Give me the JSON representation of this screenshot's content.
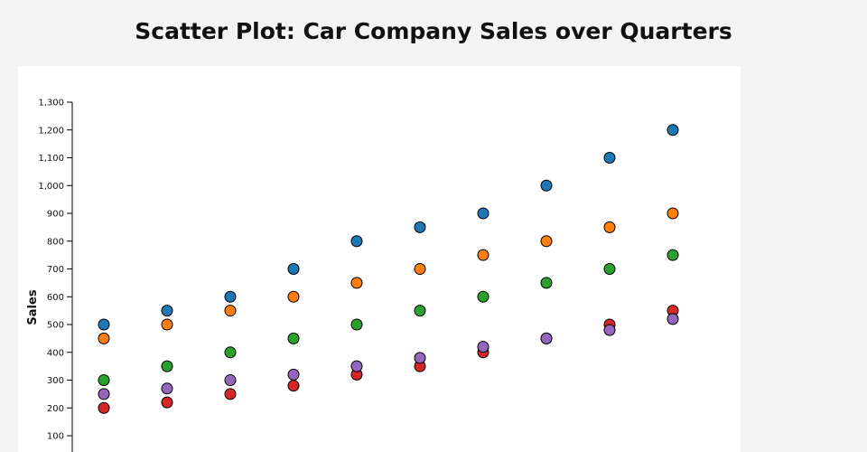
{
  "chart_data": {
    "type": "scatter",
    "title": "Scatter Plot: Car Company Sales over Quarters",
    "xlabel": "",
    "ylabel": "Sales",
    "ylim": [
      0,
      1300
    ],
    "yticks": [
      100,
      200,
      300,
      400,
      500,
      600,
      700,
      800,
      900,
      1000,
      1100,
      1200,
      1300
    ],
    "ytick_labels": [
      "100",
      "200",
      "300",
      "400",
      "500",
      "600",
      "700",
      "800",
      "900",
      "1,000",
      "1,100",
      "1,200",
      "1,300"
    ],
    "x": [
      1,
      2,
      3,
      4,
      5,
      6,
      7,
      8,
      9,
      10
    ],
    "grid": false,
    "series": [
      {
        "color": "#1f77b4",
        "values": [
          500,
          550,
          600,
          700,
          800,
          850,
          900,
          1000,
          1100,
          1200
        ]
      },
      {
        "color": "#ff7f0e",
        "values": [
          450,
          500,
          550,
          600,
          650,
          700,
          750,
          800,
          850,
          900
        ]
      },
      {
        "color": "#2ca02c",
        "values": [
          300,
          350,
          400,
          450,
          500,
          550,
          600,
          650,
          700,
          750
        ]
      },
      {
        "color": "#d62728",
        "values": [
          200,
          220,
          250,
          280,
          320,
          350,
          400,
          450,
          500,
          550
        ]
      },
      {
        "color": "#9467bd",
        "values": [
          250,
          270,
          300,
          320,
          350,
          380,
          420,
          450,
          480,
          520
        ]
      }
    ]
  }
}
